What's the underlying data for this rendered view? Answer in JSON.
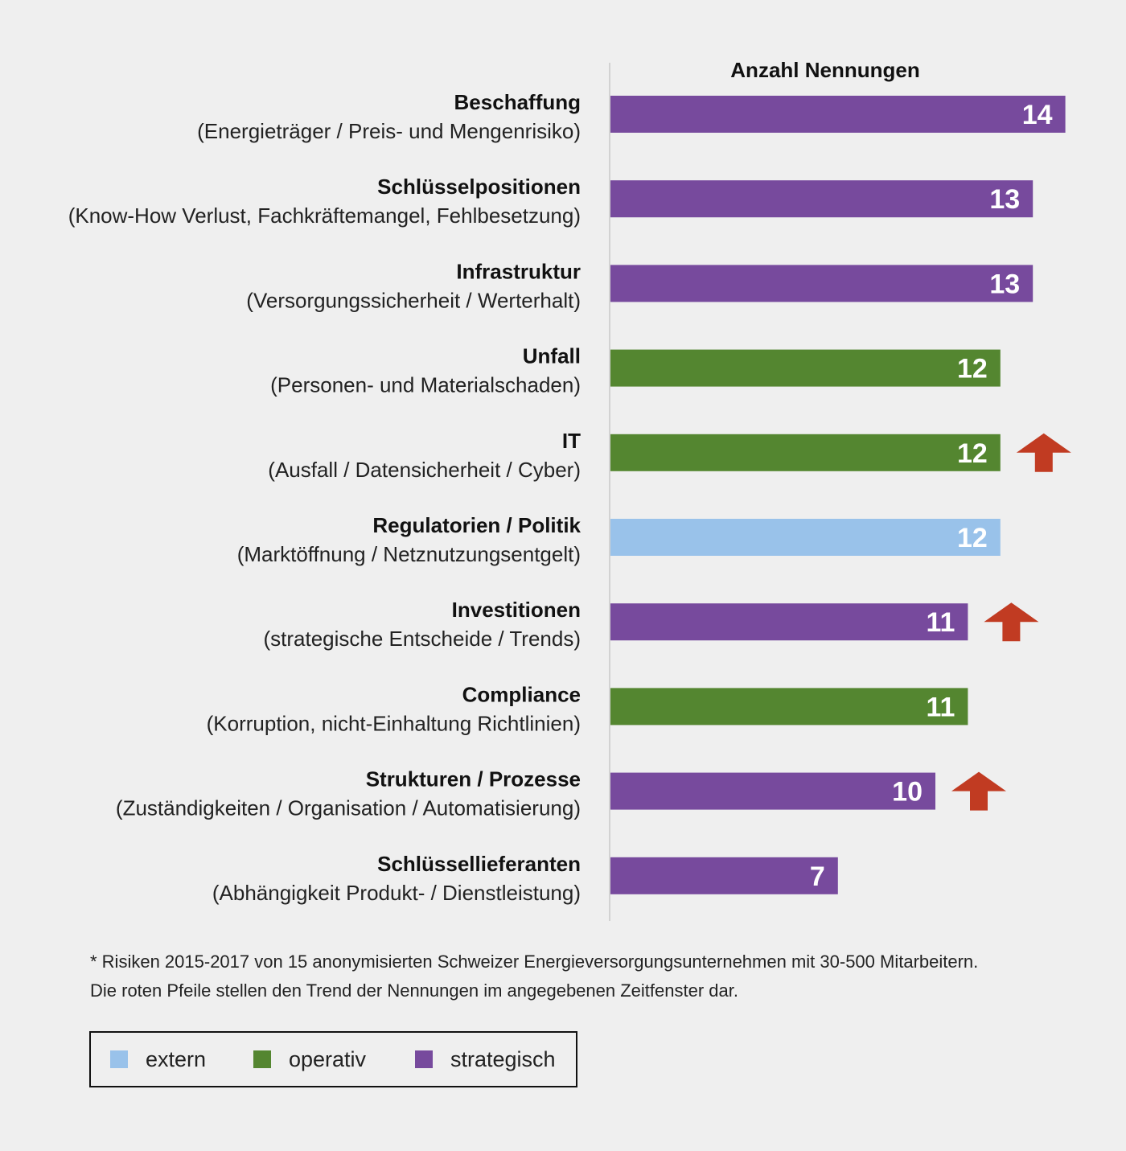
{
  "chart_data": {
    "type": "bar",
    "orientation": "horizontal",
    "value_axis_title": "Anzahl Nennungen",
    "categories": [
      {
        "label": "Beschaffung",
        "sublabel": "(Energieträger / Preis- und Mengenrisiko)",
        "value": 14,
        "group": "strategisch",
        "trend_up": false
      },
      {
        "label": "Schlüsselpositionen",
        "sublabel": "(Know-How Verlust, Fachkräftemangel, Fehlbesetzung)",
        "value": 13,
        "group": "strategisch",
        "trend_up": false
      },
      {
        "label": "Infrastruktur",
        "sublabel": "(Versorgungssicherheit / Werterhalt)",
        "value": 13,
        "group": "strategisch",
        "trend_up": false
      },
      {
        "label": "Unfall",
        "sublabel": "(Personen- und Materialschaden)",
        "value": 12,
        "group": "operativ",
        "trend_up": false
      },
      {
        "label": "IT",
        "sublabel": "(Ausfall / Datensicherheit / Cyber)",
        "value": 12,
        "group": "operativ",
        "trend_up": true
      },
      {
        "label": "Regulatorien / Politik",
        "sublabel": "(Marktöffnung / Netznutzungsentgelt)",
        "value": 12,
        "group": "extern",
        "trend_up": false
      },
      {
        "label": "Investitionen",
        "sublabel": "(strategische Entscheide / Trends)",
        "value": 11,
        "group": "strategisch",
        "trend_up": true
      },
      {
        "label": "Compliance",
        "sublabel": "(Korruption, nicht-Einhaltung Richtlinien)",
        "value": 11,
        "group": "operativ",
        "trend_up": false
      },
      {
        "label": "Strukturen / Prozesse",
        "sublabel": "(Zuständigkeiten / Organisation / Automatisierung)",
        "value": 10,
        "group": "strategisch",
        "trend_up": true
      },
      {
        "label": "Schlüssellieferanten",
        "sublabel": "(Abhängigkeit Produkt- / Dienstleistung)",
        "value": 7,
        "group": "strategisch",
        "trend_up": false
      }
    ],
    "colors": {
      "extern": "#99c2ea",
      "operativ": "#548630",
      "strategisch": "#774a9d",
      "trend_arrow": "#c13b22"
    }
  },
  "footnote": {
    "line1": "* Risiken 2015-2017 von 15 anonymisierten Schweizer Energieversorgungsunternehmen mit 30-500 Mitarbeitern.",
    "line2": "Die roten Pfeile stellen den Trend der Nennungen im angegebenen Zeitfenster dar."
  },
  "legend": [
    {
      "label": "extern",
      "color": "#99c2ea"
    },
    {
      "label": "operativ",
      "color": "#548630"
    },
    {
      "label": "strategisch",
      "color": "#774a9d"
    }
  ]
}
